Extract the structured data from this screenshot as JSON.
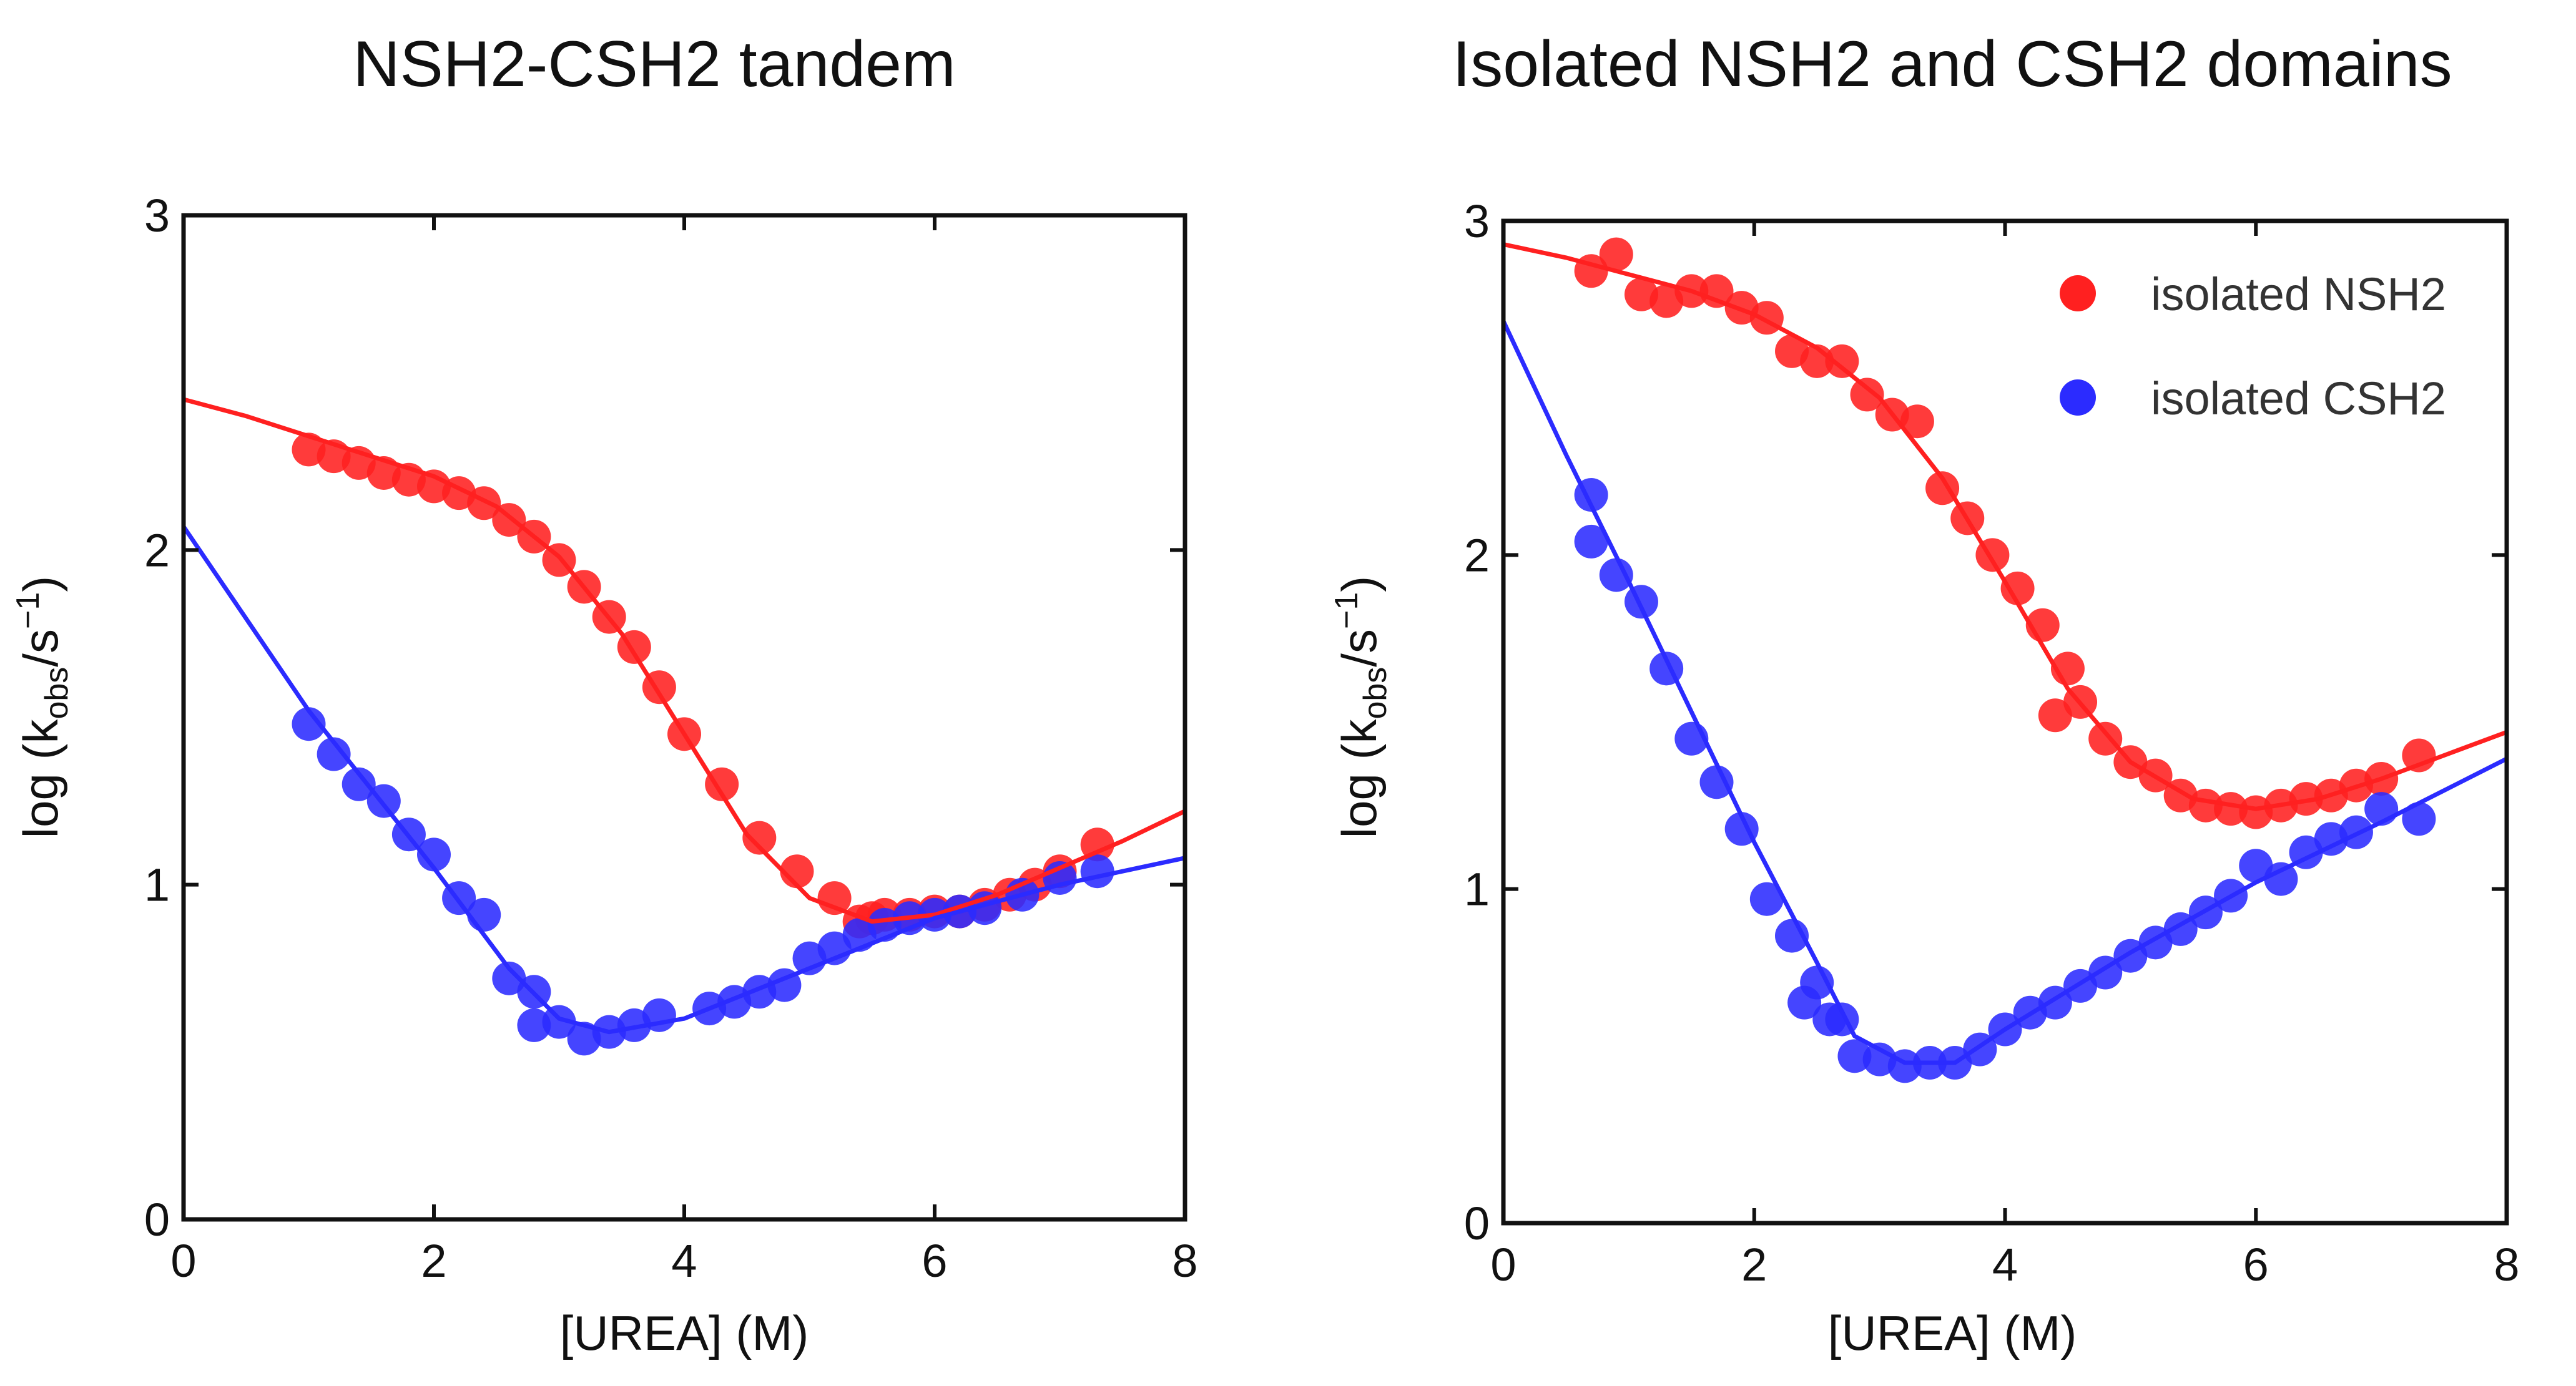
{
  "figure": {
    "background": "#ffffff"
  },
  "chart_data": [
    {
      "type": "scatter",
      "title": "NSH2-CSH2 tandem",
      "xlabel": "[UREA] (M)",
      "ylabel_parts": {
        "pre": "log (k",
        "sub": "obs",
        "mid": "/s",
        "sup": "−1",
        "post": ")"
      },
      "xlim": [
        0,
        8
      ],
      "ylim": [
        0,
        3
      ],
      "xticks": [
        0,
        2,
        4,
        6,
        8
      ],
      "yticks": [
        0,
        1,
        2,
        3
      ],
      "grid": false,
      "legend": null,
      "series": [
        {
          "name": "NSH2-CSH2 tandem (red)",
          "color": "#ff2020",
          "points": [
            {
              "x": 1.0,
              "y": 2.3
            },
            {
              "x": 1.2,
              "y": 2.28
            },
            {
              "x": 1.4,
              "y": 2.26
            },
            {
              "x": 1.6,
              "y": 2.23
            },
            {
              "x": 1.8,
              "y": 2.21
            },
            {
              "x": 2.0,
              "y": 2.19
            },
            {
              "x": 2.2,
              "y": 2.17
            },
            {
              "x": 2.4,
              "y": 2.14
            },
            {
              "x": 2.6,
              "y": 2.09
            },
            {
              "x": 2.8,
              "y": 2.04
            },
            {
              "x": 3.0,
              "y": 1.97
            },
            {
              "x": 3.2,
              "y": 1.89
            },
            {
              "x": 3.4,
              "y": 1.8
            },
            {
              "x": 3.6,
              "y": 1.71
            },
            {
              "x": 3.8,
              "y": 1.59
            },
            {
              "x": 4.0,
              "y": 1.45
            },
            {
              "x": 4.3,
              "y": 1.3
            },
            {
              "x": 4.6,
              "y": 1.14
            },
            {
              "x": 4.9,
              "y": 1.04
            },
            {
              "x": 5.2,
              "y": 0.96
            },
            {
              "x": 5.4,
              "y": 0.89
            },
            {
              "x": 5.5,
              "y": 0.9
            },
            {
              "x": 5.6,
              "y": 0.91
            },
            {
              "x": 5.8,
              "y": 0.91
            },
            {
              "x": 6.0,
              "y": 0.92
            },
            {
              "x": 6.2,
              "y": 0.92
            },
            {
              "x": 6.4,
              "y": 0.94
            },
            {
              "x": 6.6,
              "y": 0.97
            },
            {
              "x": 6.8,
              "y": 1.0
            },
            {
              "x": 7.0,
              "y": 1.04
            },
            {
              "x": 7.3,
              "y": 1.12
            }
          ],
          "fit": [
            {
              "x": 0.0,
              "y": 2.45
            },
            {
              "x": 0.5,
              "y": 2.4
            },
            {
              "x": 1.0,
              "y": 2.34
            },
            {
              "x": 1.5,
              "y": 2.28
            },
            {
              "x": 2.0,
              "y": 2.22
            },
            {
              "x": 2.5,
              "y": 2.13
            },
            {
              "x": 3.0,
              "y": 1.98
            },
            {
              "x": 3.5,
              "y": 1.75
            },
            {
              "x": 4.0,
              "y": 1.45
            },
            {
              "x": 4.5,
              "y": 1.15
            },
            {
              "x": 5.0,
              "y": 0.96
            },
            {
              "x": 5.5,
              "y": 0.89
            },
            {
              "x": 6.0,
              "y": 0.91
            },
            {
              "x": 6.5,
              "y": 0.97
            },
            {
              "x": 7.0,
              "y": 1.05
            },
            {
              "x": 7.5,
              "y": 1.13
            },
            {
              "x": 8.0,
              "y": 1.22
            }
          ]
        },
        {
          "name": "NSH2-CSH2 tandem (blue)",
          "color": "#2b2bff",
          "points": [
            {
              "x": 1.0,
              "y": 1.48
            },
            {
              "x": 1.2,
              "y": 1.39
            },
            {
              "x": 1.4,
              "y": 1.3
            },
            {
              "x": 1.6,
              "y": 1.25
            },
            {
              "x": 1.8,
              "y": 1.15
            },
            {
              "x": 2.0,
              "y": 1.09
            },
            {
              "x": 2.2,
              "y": 0.96
            },
            {
              "x": 2.4,
              "y": 0.91
            },
            {
              "x": 2.6,
              "y": 0.72
            },
            {
              "x": 2.8,
              "y": 0.68
            },
            {
              "x": 2.8,
              "y": 0.58
            },
            {
              "x": 3.0,
              "y": 0.59
            },
            {
              "x": 3.2,
              "y": 0.54
            },
            {
              "x": 3.4,
              "y": 0.56
            },
            {
              "x": 3.6,
              "y": 0.58
            },
            {
              "x": 3.8,
              "y": 0.61
            },
            {
              "x": 4.2,
              "y": 0.63
            },
            {
              "x": 4.4,
              "y": 0.65
            },
            {
              "x": 4.6,
              "y": 0.68
            },
            {
              "x": 4.8,
              "y": 0.7
            },
            {
              "x": 5.0,
              "y": 0.78
            },
            {
              "x": 5.2,
              "y": 0.81
            },
            {
              "x": 5.4,
              "y": 0.85
            },
            {
              "x": 5.6,
              "y": 0.88
            },
            {
              "x": 5.8,
              "y": 0.9
            },
            {
              "x": 6.0,
              "y": 0.91
            },
            {
              "x": 6.2,
              "y": 0.92
            },
            {
              "x": 6.4,
              "y": 0.93
            },
            {
              "x": 6.7,
              "y": 0.97
            },
            {
              "x": 7.0,
              "y": 1.02
            },
            {
              "x": 7.3,
              "y": 1.04
            }
          ],
          "fit": [
            {
              "x": 0.0,
              "y": 2.07
            },
            {
              "x": 1.0,
              "y": 1.52
            },
            {
              "x": 2.0,
              "y": 1.05
            },
            {
              "x": 2.6,
              "y": 0.75
            },
            {
              "x": 3.0,
              "y": 0.6
            },
            {
              "x": 3.4,
              "y": 0.56
            },
            {
              "x": 4.0,
              "y": 0.6
            },
            {
              "x": 5.0,
              "y": 0.75
            },
            {
              "x": 6.0,
              "y": 0.9
            },
            {
              "x": 7.0,
              "y": 1.0
            },
            {
              "x": 8.0,
              "y": 1.08
            }
          ]
        }
      ]
    },
    {
      "type": "scatter",
      "title": "Isolated NSH2 and CSH2 domains",
      "xlabel": "[UREA] (M)",
      "ylabel_parts": {
        "pre": "log (k",
        "sub": "obs",
        "mid": "/s",
        "sup": "−1",
        "post": ")"
      },
      "xlim": [
        0,
        8
      ],
      "ylim": [
        0,
        3
      ],
      "xticks": [
        0,
        2,
        4,
        6,
        8
      ],
      "yticks": [
        0,
        1,
        2,
        3
      ],
      "grid": false,
      "legend": {
        "placement": "top-right",
        "entries": [
          "isolated NSH2",
          "isolated CSH2"
        ]
      },
      "series": [
        {
          "name": "isolated NSH2",
          "color": "#ff2020",
          "points": [
            {
              "x": 0.7,
              "y": 2.85
            },
            {
              "x": 0.9,
              "y": 2.9
            },
            {
              "x": 1.1,
              "y": 2.78
            },
            {
              "x": 1.3,
              "y": 2.76
            },
            {
              "x": 1.5,
              "y": 2.79
            },
            {
              "x": 1.7,
              "y": 2.79
            },
            {
              "x": 1.9,
              "y": 2.74
            },
            {
              "x": 2.1,
              "y": 2.71
            },
            {
              "x": 2.3,
              "y": 2.61
            },
            {
              "x": 2.5,
              "y": 2.58
            },
            {
              "x": 2.7,
              "y": 2.58
            },
            {
              "x": 2.9,
              "y": 2.48
            },
            {
              "x": 3.1,
              "y": 2.42
            },
            {
              "x": 3.3,
              "y": 2.4
            },
            {
              "x": 3.5,
              "y": 2.2
            },
            {
              "x": 3.7,
              "y": 2.11
            },
            {
              "x": 3.9,
              "y": 2.0
            },
            {
              "x": 4.1,
              "y": 1.9
            },
            {
              "x": 4.3,
              "y": 1.79
            },
            {
              "x": 4.5,
              "y": 1.66
            },
            {
              "x": 4.4,
              "y": 1.52
            },
            {
              "x": 4.6,
              "y": 1.56
            },
            {
              "x": 4.8,
              "y": 1.45
            },
            {
              "x": 5.0,
              "y": 1.38
            },
            {
              "x": 5.2,
              "y": 1.34
            },
            {
              "x": 5.4,
              "y": 1.28
            },
            {
              "x": 5.6,
              "y": 1.25
            },
            {
              "x": 5.8,
              "y": 1.24
            },
            {
              "x": 6.0,
              "y": 1.23
            },
            {
              "x": 6.2,
              "y": 1.25
            },
            {
              "x": 6.4,
              "y": 1.27
            },
            {
              "x": 6.6,
              "y": 1.28
            },
            {
              "x": 6.8,
              "y": 1.31
            },
            {
              "x": 7.0,
              "y": 1.33
            },
            {
              "x": 7.3,
              "y": 1.4
            }
          ],
          "fit": [
            {
              "x": 0.0,
              "y": 2.93
            },
            {
              "x": 0.5,
              "y": 2.89
            },
            {
              "x": 1.0,
              "y": 2.84
            },
            {
              "x": 1.5,
              "y": 2.79
            },
            {
              "x": 2.0,
              "y": 2.72
            },
            {
              "x": 2.5,
              "y": 2.62
            },
            {
              "x": 3.0,
              "y": 2.47
            },
            {
              "x": 3.5,
              "y": 2.23
            },
            {
              "x": 4.0,
              "y": 1.92
            },
            {
              "x": 4.5,
              "y": 1.6
            },
            {
              "x": 5.0,
              "y": 1.38
            },
            {
              "x": 5.5,
              "y": 1.27
            },
            {
              "x": 6.0,
              "y": 1.24
            },
            {
              "x": 6.5,
              "y": 1.27
            },
            {
              "x": 7.0,
              "y": 1.33
            },
            {
              "x": 7.5,
              "y": 1.4
            },
            {
              "x": 8.0,
              "y": 1.47
            }
          ]
        },
        {
          "name": "isolated CSH2",
          "color": "#2b2bff",
          "points": [
            {
              "x": 0.7,
              "y": 2.18
            },
            {
              "x": 0.7,
              "y": 2.04
            },
            {
              "x": 0.9,
              "y": 1.94
            },
            {
              "x": 1.1,
              "y": 1.86
            },
            {
              "x": 1.3,
              "y": 1.66
            },
            {
              "x": 1.5,
              "y": 1.45
            },
            {
              "x": 1.7,
              "y": 1.32
            },
            {
              "x": 1.9,
              "y": 1.18
            },
            {
              "x": 2.1,
              "y": 0.97
            },
            {
              "x": 2.3,
              "y": 0.86
            },
            {
              "x": 2.4,
              "y": 0.66
            },
            {
              "x": 2.5,
              "y": 0.72
            },
            {
              "x": 2.6,
              "y": 0.61
            },
            {
              "x": 2.7,
              "y": 0.61
            },
            {
              "x": 2.8,
              "y": 0.5
            },
            {
              "x": 3.0,
              "y": 0.49
            },
            {
              "x": 3.2,
              "y": 0.47
            },
            {
              "x": 3.4,
              "y": 0.48
            },
            {
              "x": 3.6,
              "y": 0.48
            },
            {
              "x": 3.8,
              "y": 0.52
            },
            {
              "x": 4.0,
              "y": 0.58
            },
            {
              "x": 4.2,
              "y": 0.63
            },
            {
              "x": 4.4,
              "y": 0.66
            },
            {
              "x": 4.6,
              "y": 0.71
            },
            {
              "x": 4.8,
              "y": 0.75
            },
            {
              "x": 5.0,
              "y": 0.8
            },
            {
              "x": 5.2,
              "y": 0.84
            },
            {
              "x": 5.4,
              "y": 0.88
            },
            {
              "x": 5.6,
              "y": 0.93
            },
            {
              "x": 5.8,
              "y": 0.98
            },
            {
              "x": 6.0,
              "y": 1.07
            },
            {
              "x": 6.2,
              "y": 1.03
            },
            {
              "x": 6.4,
              "y": 1.11
            },
            {
              "x": 6.6,
              "y": 1.15
            },
            {
              "x": 6.8,
              "y": 1.17
            },
            {
              "x": 7.0,
              "y": 1.24
            },
            {
              "x": 7.3,
              "y": 1.21
            }
          ],
          "fit": [
            {
              "x": 0.0,
              "y": 2.7
            },
            {
              "x": 0.5,
              "y": 2.3
            },
            {
              "x": 1.0,
              "y": 1.92
            },
            {
              "x": 1.5,
              "y": 1.53
            },
            {
              "x": 2.0,
              "y": 1.14
            },
            {
              "x": 2.5,
              "y": 0.78
            },
            {
              "x": 2.8,
              "y": 0.56
            },
            {
              "x": 3.2,
              "y": 0.48
            },
            {
              "x": 3.6,
              "y": 0.48
            },
            {
              "x": 4.0,
              "y": 0.58
            },
            {
              "x": 5.0,
              "y": 0.81
            },
            {
              "x": 6.0,
              "y": 1.02
            },
            {
              "x": 7.0,
              "y": 1.2
            },
            {
              "x": 8.0,
              "y": 1.39
            }
          ]
        }
      ]
    }
  ]
}
